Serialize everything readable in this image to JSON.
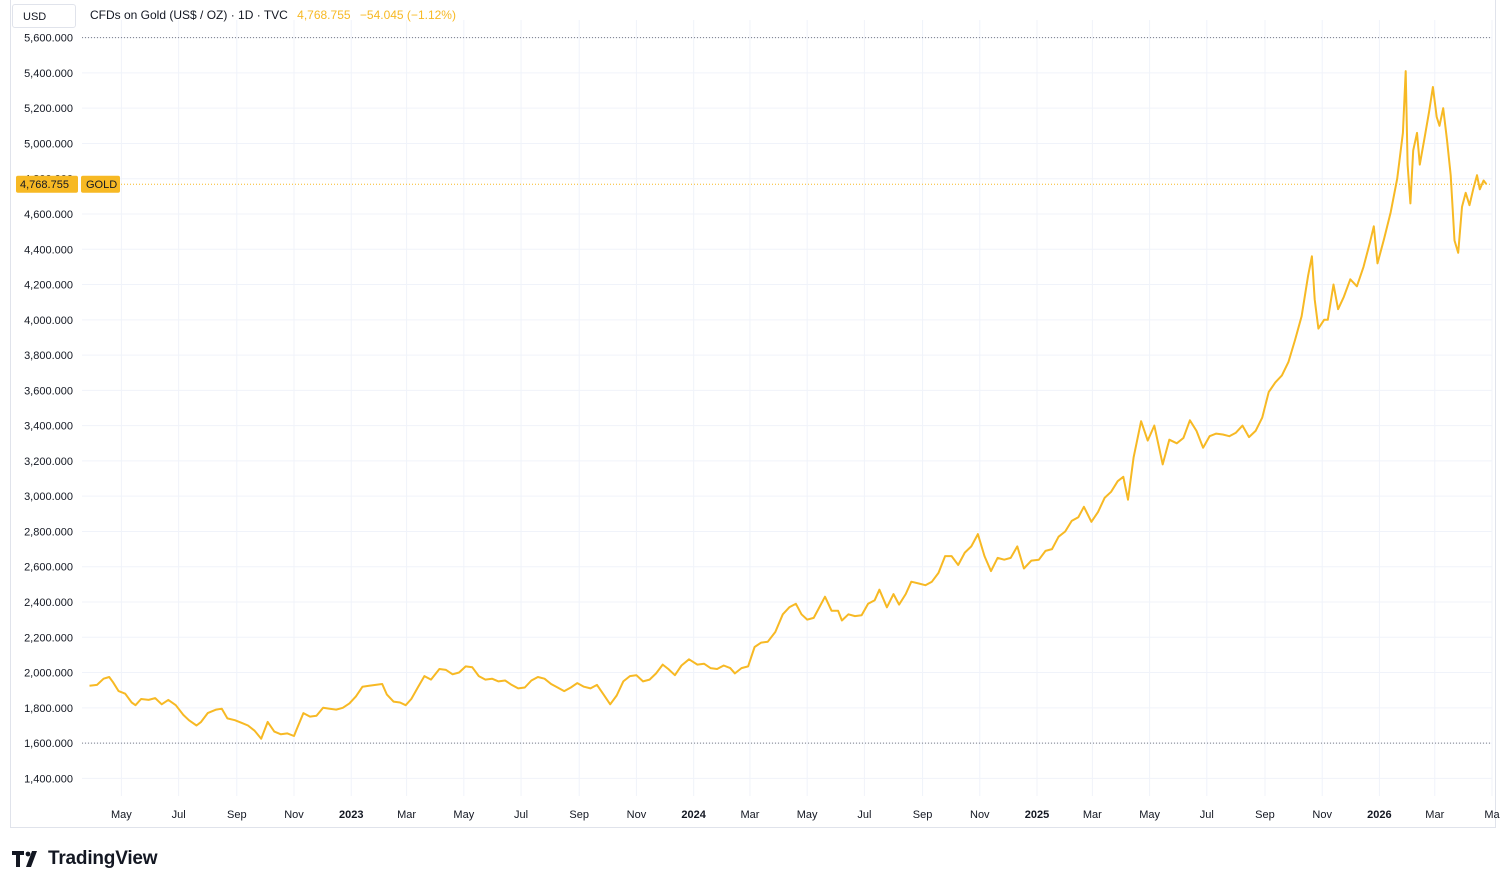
{
  "header": {
    "currency": "USD",
    "symbol_title": "CFDs on Gold (US$ / OZ) · 1D · TVC",
    "last_price": "4,768.755",
    "change": "−54.045 (−1.12%)"
  },
  "price_tag": {
    "value": "4,768.755",
    "symbol": "GOLD"
  },
  "brand": {
    "name": "TradingView"
  },
  "colors": {
    "series": "#f7b924",
    "grid": "#f0f3fa",
    "price_line": "#f7b924",
    "tag_bg": "#f7b924"
  },
  "chart_data": {
    "type": "line",
    "ylim": [
      1300,
      5700
    ],
    "y_ticks": [
      1400,
      1600,
      1800,
      2000,
      2200,
      2400,
      2600,
      2800,
      3000,
      3200,
      3400,
      3600,
      3800,
      4000,
      4200,
      4400,
      4600,
      4800,
      5000,
      5200,
      5400,
      5600
    ],
    "y_tick_labels": [
      "1,400.000",
      "1,600.000",
      "1,800.000",
      "2,000.000",
      "2,200.000",
      "2,400.000",
      "2,600.000",
      "2,800.000",
      "3,000.000",
      "3,200.000",
      "3,400.000",
      "3,600.000",
      "3,800.000",
      "4,000.000",
      "4,200.000",
      "4,400.000",
      "4,600.000",
      "4,800.000",
      "5,000.000",
      "5,200.000",
      "5,400.000",
      "5,600.000"
    ],
    "dotted_levels": [
      5600,
      1600
    ],
    "current_price": 4768.755,
    "xlim": [
      "2022-03-20",
      "2026-05-01"
    ],
    "x_ticks": [
      {
        "date": "2022-05-01",
        "label": "May",
        "bold": false
      },
      {
        "date": "2022-07-01",
        "label": "Jul",
        "bold": false
      },
      {
        "date": "2022-09-01",
        "label": "Sep",
        "bold": false
      },
      {
        "date": "2022-11-01",
        "label": "Nov",
        "bold": false
      },
      {
        "date": "2023-01-01",
        "label": "2023",
        "bold": true
      },
      {
        "date": "2023-03-01",
        "label": "Mar",
        "bold": false
      },
      {
        "date": "2023-05-01",
        "label": "May",
        "bold": false
      },
      {
        "date": "2023-07-01",
        "label": "Jul",
        "bold": false
      },
      {
        "date": "2023-09-01",
        "label": "Sep",
        "bold": false
      },
      {
        "date": "2023-11-01",
        "label": "Nov",
        "bold": false
      },
      {
        "date": "2024-01-01",
        "label": "2024",
        "bold": true
      },
      {
        "date": "2024-03-01",
        "label": "Mar",
        "bold": false
      },
      {
        "date": "2024-05-01",
        "label": "May",
        "bold": false
      },
      {
        "date": "2024-07-01",
        "label": "Jul",
        "bold": false
      },
      {
        "date": "2024-09-01",
        "label": "Sep",
        "bold": false
      },
      {
        "date": "2024-11-01",
        "label": "Nov",
        "bold": false
      },
      {
        "date": "2025-01-01",
        "label": "2025",
        "bold": true
      },
      {
        "date": "2025-03-01",
        "label": "Mar",
        "bold": false
      },
      {
        "date": "2025-05-01",
        "label": "May",
        "bold": false
      },
      {
        "date": "2025-07-01",
        "label": "Jul",
        "bold": false
      },
      {
        "date": "2025-09-01",
        "label": "Sep",
        "bold": false
      },
      {
        "date": "2025-11-01",
        "label": "Nov",
        "bold": false
      },
      {
        "date": "2026-01-01",
        "label": "2026",
        "bold": true
      },
      {
        "date": "2026-03-01",
        "label": "Mar",
        "bold": false
      },
      {
        "date": "2026-05-01",
        "label": "Ma",
        "bold": false
      }
    ],
    "series": [
      {
        "points": [
          [
            "2022-03-28",
            1925
          ],
          [
            "2022-04-05",
            1930
          ],
          [
            "2022-04-12",
            1965
          ],
          [
            "2022-04-18",
            1975
          ],
          [
            "2022-04-22",
            1945
          ],
          [
            "2022-04-28",
            1895
          ],
          [
            "2022-05-05",
            1880
          ],
          [
            "2022-05-12",
            1830
          ],
          [
            "2022-05-16",
            1815
          ],
          [
            "2022-05-22",
            1850
          ],
          [
            "2022-05-30",
            1845
          ],
          [
            "2022-06-06",
            1855
          ],
          [
            "2022-06-13",
            1820
          ],
          [
            "2022-06-20",
            1845
          ],
          [
            "2022-06-28",
            1815
          ],
          [
            "2022-07-06",
            1760
          ],
          [
            "2022-07-12",
            1730
          ],
          [
            "2022-07-20",
            1700
          ],
          [
            "2022-07-25",
            1720
          ],
          [
            "2022-08-01",
            1770
          ],
          [
            "2022-08-10",
            1790
          ],
          [
            "2022-08-16",
            1795
          ],
          [
            "2022-08-22",
            1740
          ],
          [
            "2022-08-30",
            1730
          ],
          [
            "2022-09-06",
            1715
          ],
          [
            "2022-09-13",
            1700
          ],
          [
            "2022-09-20",
            1670
          ],
          [
            "2022-09-27",
            1625
          ],
          [
            "2022-10-04",
            1720
          ],
          [
            "2022-10-11",
            1665
          ],
          [
            "2022-10-18",
            1650
          ],
          [
            "2022-10-25",
            1655
          ],
          [
            "2022-11-01",
            1640
          ],
          [
            "2022-11-04",
            1680
          ],
          [
            "2022-11-11",
            1770
          ],
          [
            "2022-11-18",
            1750
          ],
          [
            "2022-11-25",
            1755
          ],
          [
            "2022-12-02",
            1800
          ],
          [
            "2022-12-09",
            1795
          ],
          [
            "2022-12-16",
            1790
          ],
          [
            "2022-12-23",
            1800
          ],
          [
            "2022-12-30",
            1825
          ],
          [
            "2023-01-06",
            1865
          ],
          [
            "2023-01-13",
            1920
          ],
          [
            "2023-01-20",
            1925
          ],
          [
            "2023-01-27",
            1930
          ],
          [
            "2023-02-03",
            1935
          ],
          [
            "2023-02-08",
            1875
          ],
          [
            "2023-02-15",
            1835
          ],
          [
            "2023-02-22",
            1830
          ],
          [
            "2023-02-28",
            1815
          ],
          [
            "2023-03-06",
            1850
          ],
          [
            "2023-03-13",
            1915
          ],
          [
            "2023-03-20",
            1980
          ],
          [
            "2023-03-27",
            1960
          ],
          [
            "2023-04-05",
            2020
          ],
          [
            "2023-04-12",
            2015
          ],
          [
            "2023-04-19",
            1990
          ],
          [
            "2023-04-26",
            2000
          ],
          [
            "2023-05-03",
            2035
          ],
          [
            "2023-05-10",
            2030
          ],
          [
            "2023-05-17",
            1980
          ],
          [
            "2023-05-24",
            1960
          ],
          [
            "2023-05-31",
            1965
          ],
          [
            "2023-06-07",
            1950
          ],
          [
            "2023-06-14",
            1955
          ],
          [
            "2023-06-21",
            1930
          ],
          [
            "2023-06-28",
            1910
          ],
          [
            "2023-07-05",
            1915
          ],
          [
            "2023-07-12",
            1955
          ],
          [
            "2023-07-19",
            1975
          ],
          [
            "2023-07-26",
            1965
          ],
          [
            "2023-08-02",
            1935
          ],
          [
            "2023-08-09",
            1915
          ],
          [
            "2023-08-16",
            1895
          ],
          [
            "2023-08-23",
            1915
          ],
          [
            "2023-08-30",
            1940
          ],
          [
            "2023-09-06",
            1920
          ],
          [
            "2023-09-13",
            1910
          ],
          [
            "2023-09-20",
            1930
          ],
          [
            "2023-09-27",
            1875
          ],
          [
            "2023-10-04",
            1820
          ],
          [
            "2023-10-11",
            1870
          ],
          [
            "2023-10-18",
            1950
          ],
          [
            "2023-10-25",
            1980
          ],
          [
            "2023-11-01",
            1985
          ],
          [
            "2023-11-08",
            1950
          ],
          [
            "2023-11-15",
            1960
          ],
          [
            "2023-11-22",
            1995
          ],
          [
            "2023-11-29",
            2045
          ],
          [
            "2023-12-05",
            2020
          ],
          [
            "2023-12-12",
            1985
          ],
          [
            "2023-12-19",
            2040
          ],
          [
            "2023-12-27",
            2075
          ],
          [
            "2024-01-05",
            2045
          ],
          [
            "2024-01-12",
            2050
          ],
          [
            "2024-01-19",
            2025
          ],
          [
            "2024-01-26",
            2020
          ],
          [
            "2024-02-02",
            2040
          ],
          [
            "2024-02-09",
            2025
          ],
          [
            "2024-02-14",
            1995
          ],
          [
            "2024-02-21",
            2025
          ],
          [
            "2024-02-28",
            2035
          ],
          [
            "2024-03-06",
            2145
          ],
          [
            "2024-03-13",
            2170
          ],
          [
            "2024-03-20",
            2175
          ],
          [
            "2024-03-28",
            2230
          ],
          [
            "2024-04-05",
            2330
          ],
          [
            "2024-04-12",
            2370
          ],
          [
            "2024-04-19",
            2390
          ],
          [
            "2024-04-25",
            2330
          ],
          [
            "2024-05-01",
            2300
          ],
          [
            "2024-05-08",
            2310
          ],
          [
            "2024-05-15",
            2380
          ],
          [
            "2024-05-20",
            2430
          ],
          [
            "2024-05-27",
            2350
          ],
          [
            "2024-06-03",
            2350
          ],
          [
            "2024-06-07",
            2295
          ],
          [
            "2024-06-14",
            2330
          ],
          [
            "2024-06-21",
            2320
          ],
          [
            "2024-06-28",
            2325
          ],
          [
            "2024-07-05",
            2390
          ],
          [
            "2024-07-12",
            2410
          ],
          [
            "2024-07-17",
            2470
          ],
          [
            "2024-07-25",
            2370
          ],
          [
            "2024-08-01",
            2445
          ],
          [
            "2024-08-07",
            2385
          ],
          [
            "2024-08-14",
            2445
          ],
          [
            "2024-08-20",
            2515
          ],
          [
            "2024-08-28",
            2505
          ],
          [
            "2024-09-04",
            2495
          ],
          [
            "2024-09-11",
            2515
          ],
          [
            "2024-09-18",
            2565
          ],
          [
            "2024-09-25",
            2660
          ],
          [
            "2024-10-02",
            2660
          ],
          [
            "2024-10-09",
            2610
          ],
          [
            "2024-10-16",
            2680
          ],
          [
            "2024-10-23",
            2715
          ],
          [
            "2024-10-30",
            2785
          ],
          [
            "2024-11-06",
            2660
          ],
          [
            "2024-11-13",
            2575
          ],
          [
            "2024-11-20",
            2650
          ],
          [
            "2024-11-27",
            2640
          ],
          [
            "2024-12-04",
            2650
          ],
          [
            "2024-12-11",
            2715
          ],
          [
            "2024-12-18",
            2590
          ],
          [
            "2024-12-26",
            2635
          ],
          [
            "2025-01-03",
            2640
          ],
          [
            "2025-01-10",
            2690
          ],
          [
            "2025-01-17",
            2700
          ],
          [
            "2025-01-24",
            2770
          ],
          [
            "2025-01-31",
            2800
          ],
          [
            "2025-02-07",
            2860
          ],
          [
            "2025-02-14",
            2880
          ],
          [
            "2025-02-20",
            2940
          ],
          [
            "2025-02-28",
            2855
          ],
          [
            "2025-03-07",
            2910
          ],
          [
            "2025-03-14",
            2990
          ],
          [
            "2025-03-21",
            3025
          ],
          [
            "2025-03-28",
            3085
          ],
          [
            "2025-04-03",
            3110
          ],
          [
            "2025-04-08",
            2980
          ],
          [
            "2025-04-14",
            3220
          ],
          [
            "2025-04-22",
            3425
          ],
          [
            "2025-04-29",
            3315
          ],
          [
            "2025-05-06",
            3400
          ],
          [
            "2025-05-13",
            3230
          ],
          [
            "2025-05-15",
            3180
          ],
          [
            "2025-05-22",
            3320
          ],
          [
            "2025-05-30",
            3300
          ],
          [
            "2025-06-06",
            3330
          ],
          [
            "2025-06-13",
            3430
          ],
          [
            "2025-06-20",
            3370
          ],
          [
            "2025-06-27",
            3275
          ],
          [
            "2025-07-04",
            3340
          ],
          [
            "2025-07-11",
            3355
          ],
          [
            "2025-07-18",
            3350
          ],
          [
            "2025-07-25",
            3340
          ],
          [
            "2025-08-01",
            3360
          ],
          [
            "2025-08-08",
            3400
          ],
          [
            "2025-08-15",
            3335
          ],
          [
            "2025-08-22",
            3370
          ],
          [
            "2025-08-29",
            3445
          ],
          [
            "2025-09-05",
            3590
          ],
          [
            "2025-09-12",
            3645
          ],
          [
            "2025-09-19",
            3685
          ],
          [
            "2025-09-26",
            3760
          ],
          [
            "2025-10-03",
            3885
          ],
          [
            "2025-10-10",
            4020
          ],
          [
            "2025-10-17",
            4250
          ],
          [
            "2025-10-21",
            4360
          ],
          [
            "2025-10-24",
            4115
          ],
          [
            "2025-10-28",
            3950
          ],
          [
            "2025-11-03",
            4000
          ],
          [
            "2025-11-07",
            4000
          ],
          [
            "2025-11-13",
            4200
          ],
          [
            "2025-11-18",
            4060
          ],
          [
            "2025-11-24",
            4130
          ],
          [
            "2025-12-01",
            4230
          ],
          [
            "2025-12-08",
            4190
          ],
          [
            "2025-12-15",
            4300
          ],
          [
            "2025-12-22",
            4440
          ],
          [
            "2025-12-26",
            4530
          ],
          [
            "2025-12-30",
            4320
          ],
          [
            "2026-01-06",
            4460
          ],
          [
            "2026-01-13",
            4610
          ],
          [
            "2026-01-20",
            4800
          ],
          [
            "2026-01-26",
            5060
          ],
          [
            "2026-01-29",
            5410
          ],
          [
            "2026-01-31",
            4880
          ],
          [
            "2026-02-03",
            4660
          ],
          [
            "2026-02-06",
            4960
          ],
          [
            "2026-02-10",
            5060
          ],
          [
            "2026-02-13",
            4880
          ],
          [
            "2026-02-18",
            5030
          ],
          [
            "2026-02-23",
            5180
          ],
          [
            "2026-02-27",
            5320
          ],
          [
            "2026-03-03",
            5150
          ],
          [
            "2026-03-06",
            5100
          ],
          [
            "2026-03-10",
            5200
          ],
          [
            "2026-03-14",
            5020
          ],
          [
            "2026-03-18",
            4820
          ],
          [
            "2026-03-22",
            4450
          ],
          [
            "2026-03-26",
            4380
          ],
          [
            "2026-03-30",
            4640
          ],
          [
            "2026-04-03",
            4720
          ],
          [
            "2026-04-07",
            4650
          ],
          [
            "2026-04-11",
            4740
          ],
          [
            "2026-04-15",
            4820
          ],
          [
            "2026-04-18",
            4740
          ],
          [
            "2026-04-22",
            4790
          ],
          [
            "2026-04-25",
            4769
          ]
        ]
      }
    ]
  }
}
